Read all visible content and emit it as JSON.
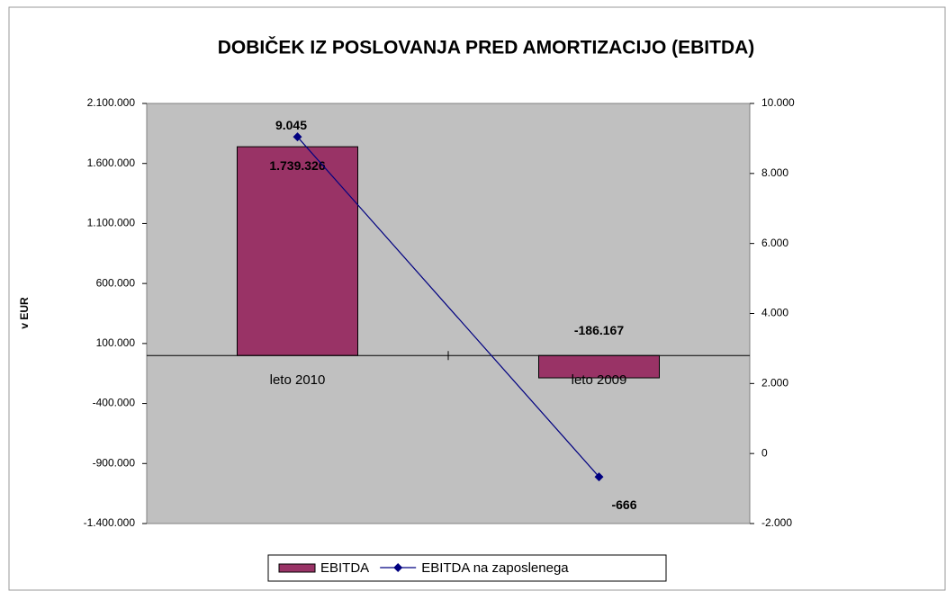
{
  "chart_data": {
    "type": "bar_line",
    "title": "DOBIČEK IZ POSLOVANJA PRED AMORTIZACIJO (EBITDA)",
    "y_label": "v EUR",
    "categories": [
      "leto 2010",
      "leto 2009"
    ],
    "series": [
      {
        "name": "EBITDA",
        "type": "bar",
        "color": "#993366",
        "values": [
          1739326,
          -186167
        ],
        "value_labels": [
          "1.739.326",
          "-186.167"
        ]
      },
      {
        "name": "EBITDA na zaposlenega",
        "type": "line",
        "axis": "y2",
        "color": "#000080",
        "values": [
          9045,
          -666
        ],
        "value_labels": [
          "9.045",
          "-666"
        ]
      }
    ],
    "ylim": [
      -1400000,
      2100000
    ],
    "yticks": [
      {
        "value": -1400000,
        "label": "-1.400.000"
      },
      {
        "value": -900000,
        "label": "-900.000"
      },
      {
        "value": -400000,
        "label": "-400.000"
      },
      {
        "value": 100000,
        "label": "100.000"
      },
      {
        "value": 600000,
        "label": "600.000"
      },
      {
        "value": 1100000,
        "label": "1.100.000"
      },
      {
        "value": 1600000,
        "label": "1.600.000"
      },
      {
        "value": 2100000,
        "label": "2.100.000"
      }
    ],
    "y2lim": [
      -2000,
      10000
    ],
    "y2ticks": [
      {
        "value": -2000,
        "label": "-2.000"
      },
      0,
      {
        "value": 2000,
        "label": "2.000"
      },
      {
        "value": 4000,
        "label": "4.000"
      },
      {
        "value": 6000,
        "label": "6.000"
      },
      {
        "value": 8000,
        "label": "8.000"
      },
      {
        "value": 10000,
        "label": "10.000"
      }
    ],
    "plot_background": "#c0c0c0",
    "legend": "bottom"
  }
}
